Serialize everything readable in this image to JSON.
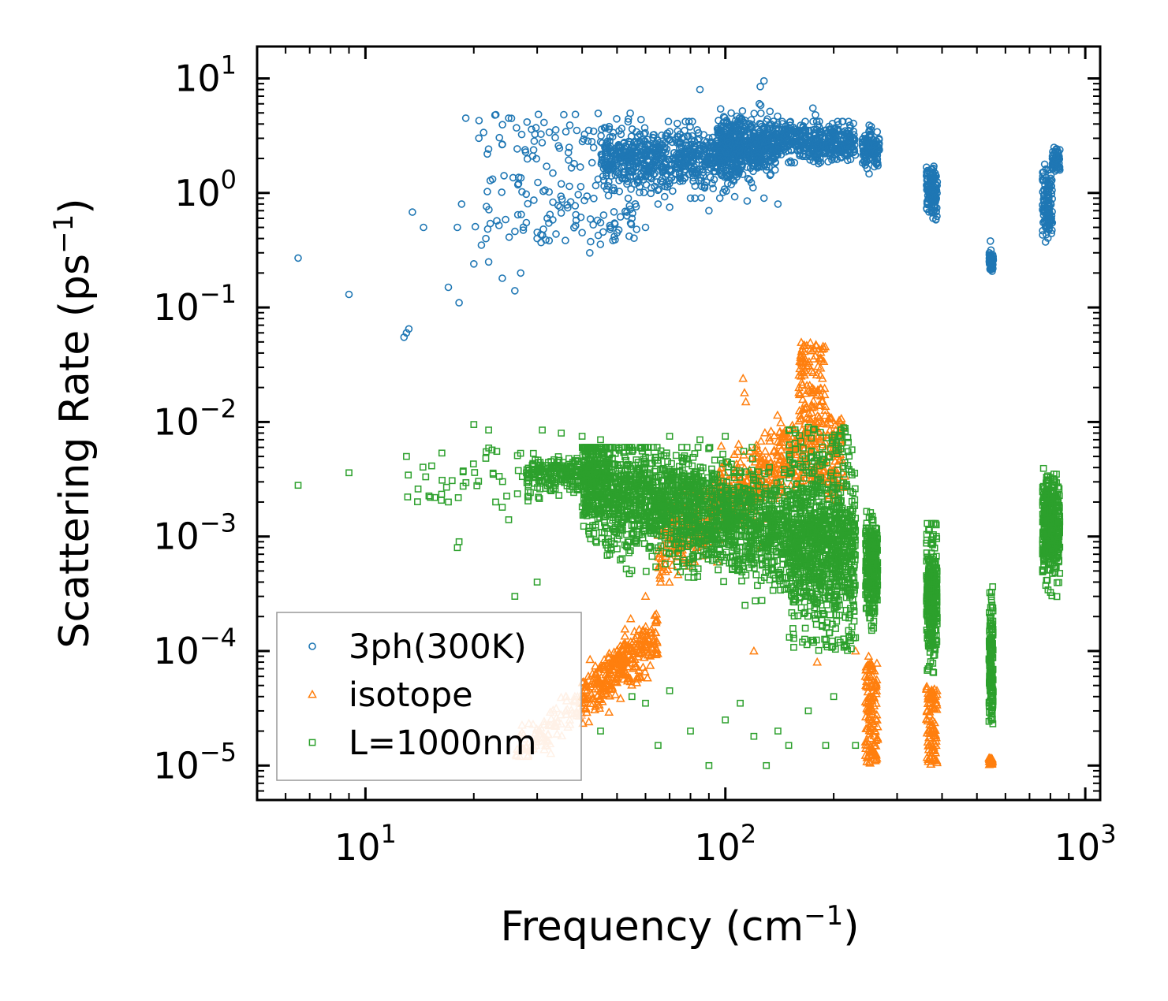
{
  "chart_data": {
    "type": "scatter",
    "title": "",
    "xlabel": "Frequency (cm",
    "xlabel_sup": "−1",
    "xlabel_end": ")",
    "ylabel": "Scattering Rate (ps",
    "ylabel_sup": "−1",
    "ylabel_end": ")",
    "xscale": "log",
    "yscale": "log",
    "xlim": [
      5,
      1100
    ],
    "ylim": [
      5e-06,
      19
    ],
    "x_ticks": [
      {
        "value": 10,
        "base": "10",
        "exp": "1"
      },
      {
        "value": 100,
        "base": "10",
        "exp": "2"
      },
      {
        "value": 1000,
        "base": "10",
        "exp": "3"
      }
    ],
    "y_ticks": [
      {
        "value": 10,
        "base": "10",
        "exp": "1"
      },
      {
        "value": 1,
        "base": "10",
        "exp": "0"
      },
      {
        "value": 0.1,
        "base": "10",
        "exp": "−1"
      },
      {
        "value": 0.01,
        "base": "10",
        "exp": "−2"
      },
      {
        "value": 0.001,
        "base": "10",
        "exp": "−3"
      },
      {
        "value": 0.0001,
        "base": "10",
        "exp": "−4"
      },
      {
        "value": 1e-05,
        "base": "10",
        "exp": "−5"
      }
    ],
    "legend": {
      "position": "lower-left",
      "entries": [
        {
          "label": "3ph(300K)",
          "marker": "circle",
          "color": "#1f77b4"
        },
        {
          "label": "isotope",
          "marker": "triangle",
          "color": "#ff7f0e"
        },
        {
          "label": "L=1000nm",
          "marker": "square",
          "color": "#2ca02c"
        }
      ]
    },
    "series": [
      {
        "name": "3ph(300K)",
        "marker": "circle",
        "color": "#1f77b4",
        "isolated_points": [
          [
            6.5,
            0.27
          ],
          [
            9,
            0.13
          ],
          [
            12.8,
            0.055
          ],
          [
            13,
            0.06
          ],
          [
            13.2,
            0.065
          ],
          [
            13.5,
            0.68
          ],
          [
            14.5,
            0.5
          ],
          [
            17,
            0.15
          ],
          [
            18,
            0.5
          ],
          [
            18.2,
            0.11
          ],
          [
            18.5,
            0.8
          ],
          [
            20,
            0.24
          ],
          [
            21,
            0.35
          ],
          [
            22,
            0.25
          ],
          [
            19,
            4.5
          ],
          [
            25,
            4.5
          ],
          [
            24,
            0.18
          ],
          [
            26,
            0.14
          ],
          [
            27,
            0.2
          ],
          [
            28,
            0.55
          ],
          [
            30,
            0.4
          ],
          [
            32,
            0.6
          ],
          [
            35,
            1.2
          ],
          [
            38,
            1.8
          ],
          [
            40,
            0.45
          ],
          [
            42,
            0.3
          ],
          [
            45,
            0.55
          ],
          [
            48,
            0.5
          ],
          [
            50,
            0.45
          ],
          [
            55,
            0.6
          ],
          [
            60,
            0.5
          ],
          [
            65,
            0.8
          ],
          [
            70,
            0.75
          ],
          [
            80,
            0.9
          ],
          [
            90,
            0.7
          ],
          [
            115,
            0.85
          ],
          [
            128,
            0.9
          ],
          [
            140,
            0.8
          ],
          [
            85,
            8
          ],
          [
            128,
            9.5
          ],
          [
            125,
            8.5
          ],
          [
            175,
            5.5
          ],
          [
            178,
            4.8
          ],
          [
            220,
            4.2
          ],
          [
            545,
            0.38
          ]
        ],
        "clusters": [
          {
            "x": [
              20,
              60
            ],
            "y": [
              0.35,
              5
            ],
            "count": 180,
            "dist": "loguniform"
          },
          {
            "x": [
              45,
              110
            ],
            "y": [
              0.9,
              4.2
            ],
            "count": 700,
            "dist": "gauss",
            "y_center": 2.0,
            "y_spread": 0.18
          },
          {
            "x": [
              95,
              140
            ],
            "y": [
              1.0,
              6.0
            ],
            "count": 500,
            "dist": "gauss",
            "y_center": 2.6,
            "y_spread": 0.17
          },
          {
            "x": [
              140,
              230
            ],
            "y": [
              1.5,
              4.2
            ],
            "count": 400,
            "dist": "gauss",
            "y_center": 2.8,
            "y_spread": 0.12
          },
          {
            "x": [
              240,
              268
            ],
            "y": [
              1.4,
              3.9
            ],
            "count": 120,
            "dist": "gauss",
            "y_center": 2.4,
            "y_spread": 0.12
          },
          {
            "x": [
              362,
              388
            ],
            "y": [
              0.55,
              1.9
            ],
            "count": 140,
            "dist": "gauss",
            "y_center": 1.0,
            "y_spread": 0.16
          },
          {
            "x": [
              540,
              555
            ],
            "y": [
              0.19,
              0.32
            ],
            "count": 60,
            "dist": "gauss",
            "y_center": 0.25,
            "y_spread": 0.06
          },
          {
            "x": [
              760,
              810
            ],
            "y": [
              0.2,
              2.0
            ],
            "count": 120,
            "dist": "gauss",
            "y_center": 0.8,
            "y_spread": 0.22
          },
          {
            "x": [
              810,
              850
            ],
            "y": [
              1.3,
              2.5
            ],
            "count": 60,
            "dist": "gauss",
            "y_center": 1.9,
            "y_spread": 0.08
          }
        ]
      },
      {
        "name": "isotope",
        "marker": "triangle",
        "color": "#ff7f0e",
        "isolated_points": [
          [
            112,
            0.024
          ],
          [
            113,
            0.018
          ],
          [
            114,
            0.015
          ],
          [
            60,
            0.0003
          ],
          [
            120,
            0.0001
          ],
          [
            125,
            0.0008
          ],
          [
            180,
            8e-05
          ],
          [
            230,
            0.0001
          ],
          [
            245,
            6e-05
          ],
          [
            250,
            9e-05
          ]
        ],
        "clusters": [
          {
            "x": [
              26,
              40
            ],
            "y": [
              1.2e-05,
              4e-05
            ],
            "count": 100,
            "dist": "curve",
            "slope": 2.2,
            "ref": [
              26,
              1.3e-05
            ],
            "y_spread": 0.13,
            "color": "#ffbb88"
          },
          {
            "x": [
              40,
              65
            ],
            "y": [
              1.2e-05,
              0.0006
            ],
            "count": 300,
            "dist": "curve",
            "slope": 2.5,
            "ref": [
              40,
              4e-05
            ],
            "y_spread": 0.16
          },
          {
            "x": [
              65,
              160
            ],
            "y": [
              0.0004,
              0.012
            ],
            "count": 500,
            "dist": "curve",
            "slope": 2.2,
            "ref": [
              65,
              0.0008
            ],
            "y_spread": 0.25
          },
          {
            "x": [
              160,
              190
            ],
            "y": [
              0.003,
              0.05
            ],
            "count": 200,
            "dist": "loguniform"
          },
          {
            "x": [
              190,
              215
            ],
            "y": [
              0.002,
              0.012
            ],
            "count": 80,
            "dist": "loguniform"
          },
          {
            "x": [
              245,
              265
            ],
            "y": [
              1e-05,
              8e-05
            ],
            "count": 120,
            "dist": "loguniform"
          },
          {
            "x": [
              362,
              388
            ],
            "y": [
              1e-05,
              5e-05
            ],
            "count": 100,
            "dist": "loguniform"
          },
          {
            "x": [
              540,
              555
            ],
            "y": [
              1e-05,
              1.2e-05
            ],
            "count": 25,
            "dist": "loguniform"
          }
        ]
      },
      {
        "name": "L=1000nm",
        "marker": "square",
        "color": "#2ca02c",
        "isolated_points": [
          [
            6.5,
            0.0028
          ],
          [
            9,
            0.0036
          ],
          [
            13,
            0.005
          ],
          [
            14,
            0.0026
          ],
          [
            17,
            0.002
          ],
          [
            18,
            0.0008
          ],
          [
            18.2,
            0.0009
          ],
          [
            20,
            0.0095
          ],
          [
            22,
            0.0085
          ],
          [
            23,
            0.002
          ],
          [
            24,
            0.0018
          ],
          [
            25,
            0.0014
          ],
          [
            26,
            0.0003
          ],
          [
            30,
            0.0004
          ],
          [
            31,
            0.0085
          ],
          [
            35,
            0.008
          ],
          [
            40,
            0.0075
          ],
          [
            45,
            0.007
          ],
          [
            70,
            0.0075
          ],
          [
            85,
            0.007
          ],
          [
            100,
            0.0075
          ],
          [
            210,
            0.0085
          ],
          [
            215,
            0.0088
          ],
          [
            45,
            2e-05
          ],
          [
            55,
            4e-05
          ],
          [
            60,
            3.5e-05
          ],
          [
            65,
            1.5e-05
          ],
          [
            70,
            4.5e-05
          ],
          [
            80,
            2e-05
          ],
          [
            90,
            1e-05
          ],
          [
            100,
            2.5e-05
          ],
          [
            110,
            3.5e-05
          ],
          [
            120,
            1.8e-05
          ],
          [
            130,
            1e-05
          ],
          [
            140,
            2e-05
          ],
          [
            150,
            1.5e-05
          ],
          [
            170,
            3e-05
          ],
          [
            190,
            1.5e-05
          ],
          [
            200,
            4e-05
          ],
          [
            230,
            1.5e-05
          ]
        ],
        "clusters": [
          {
            "x": [
              13,
              35
            ],
            "y": [
              0.002,
              0.006
            ],
            "count": 60,
            "dist": "loguniform"
          },
          {
            "x": [
              28,
              45
            ],
            "y": [
              0.002,
              0.005
            ],
            "count": 250,
            "dist": "gauss",
            "y_center": 0.0035,
            "y_spread": 0.09
          },
          {
            "x": [
              40,
              230
            ],
            "y": [
              8e-05,
              0.006
            ],
            "count": 2600,
            "dist": "curve",
            "slope": -0.8,
            "ref": [
              40,
              0.003
            ],
            "y_spread": 0.33
          },
          {
            "x": [
              150,
              230
            ],
            "y": [
              0.0001,
              0.009
            ],
            "count": 400,
            "dist": "loguniform"
          },
          {
            "x": [
              245,
              265
            ],
            "y": [
              0.0001,
              0.0017
            ],
            "count": 300,
            "dist": "gauss",
            "y_center": 0.0005,
            "y_spread": 0.28
          },
          {
            "x": [
              362,
              388
            ],
            "y": [
              2e-05,
              0.0013
            ],
            "count": 300,
            "dist": "gauss",
            "y_center": 0.0003,
            "y_spread": 0.35
          },
          {
            "x": [
              540,
              555
            ],
            "y": [
              1e-05,
              0.0005
            ],
            "count": 160,
            "dist": "gauss",
            "y_center": 8e-05,
            "y_spread": 0.4
          },
          {
            "x": [
              760,
              850
            ],
            "y": [
              8e-05,
              0.008
            ],
            "count": 400,
            "dist": "gauss",
            "y_center": 0.0012,
            "y_spread": 0.32
          }
        ]
      }
    ]
  }
}
